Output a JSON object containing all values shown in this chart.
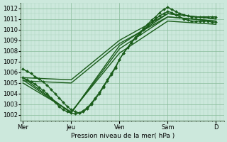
{
  "bg_color": "#cce8dc",
  "grid_major_color": "#88bb99",
  "grid_minor_color": "#aad4bb",
  "line_color": "#1a5c1a",
  "ylabel_text": "Pression niveau de la mer( hPa )",
  "yticks": [
    1002,
    1003,
    1004,
    1005,
    1006,
    1007,
    1008,
    1009,
    1010,
    1011,
    1012
  ],
  "ylim": [
    1001.5,
    1012.5
  ],
  "xtick_labels": [
    "Mer",
    "Jeu",
    "Ven",
    "Sam",
    "D"
  ],
  "xtick_positions": [
    0,
    24,
    48,
    72,
    96
  ],
  "xlim": [
    -1,
    100
  ],
  "lines": [
    {
      "x": [
        0,
        2,
        4,
        6,
        8,
        10,
        12,
        14,
        16,
        18,
        20,
        22,
        24,
        26,
        28,
        30,
        32,
        34,
        36,
        38,
        40,
        42,
        44,
        46,
        48,
        50,
        52,
        54,
        56,
        58,
        60,
        62,
        64,
        66,
        68,
        70,
        72,
        74,
        76,
        78,
        80,
        82,
        84,
        86,
        88,
        90,
        92,
        94,
        96
      ],
      "y": [
        1006.3,
        1006.1,
        1005.9,
        1005.6,
        1005.4,
        1005.1,
        1004.8,
        1004.4,
        1004.0,
        1003.6,
        1003.2,
        1002.8,
        1002.5,
        1002.3,
        1002.2,
        1002.3,
        1002.6,
        1003.0,
        1003.5,
        1004.0,
        1004.6,
        1005.2,
        1005.8,
        1006.4,
        1007.2,
        1007.8,
        1008.3,
        1008.8,
        1009.3,
        1009.7,
        1010.1,
        1010.5,
        1010.9,
        1011.2,
        1011.6,
        1011.9,
        1012.1,
        1011.9,
        1011.7,
        1011.5,
        1011.4,
        1011.3,
        1011.2,
        1011.2,
        1011.2,
        1011.2,
        1011.2,
        1011.2,
        1011.2
      ],
      "marker": "D",
      "ms": 2.0,
      "lw": 1.0
    },
    {
      "x": [
        0,
        2,
        4,
        6,
        8,
        10,
        12,
        14,
        16,
        18,
        20,
        22,
        24,
        26,
        28,
        30,
        32,
        34,
        36,
        38,
        40,
        42,
        44,
        46,
        48,
        50,
        52,
        54,
        56,
        58,
        60,
        62,
        64,
        66,
        68,
        70,
        72,
        74,
        76,
        78,
        80,
        82,
        84,
        86,
        88,
        90,
        92,
        94,
        96
      ],
      "y": [
        1005.5,
        1005.3,
        1005.1,
        1004.9,
        1004.6,
        1004.3,
        1004.0,
        1003.6,
        1003.2,
        1002.8,
        1002.5,
        1002.3,
        1002.2,
        1002.1,
        1002.2,
        1002.4,
        1002.7,
        1003.1,
        1003.6,
        1004.1,
        1004.7,
        1005.3,
        1005.9,
        1006.5,
        1007.2,
        1007.8,
        1008.3,
        1008.8,
        1009.2,
        1009.6,
        1010.0,
        1010.3,
        1010.7,
        1011.0,
        1011.3,
        1011.5,
        1011.7,
        1011.6,
        1011.4,
        1011.2,
        1011.0,
        1010.9,
        1010.8,
        1010.8,
        1010.8,
        1010.8,
        1010.8,
        1010.7,
        1010.7
      ],
      "marker": "D",
      "ms": 2.0,
      "lw": 1.0
    },
    {
      "x": [
        0,
        24,
        48,
        72,
        96
      ],
      "y": [
        1005.5,
        1002.2,
        1008.5,
        1011.5,
        1011.0
      ],
      "marker": null,
      "ms": 0,
      "lw": 1.0
    },
    {
      "x": [
        0,
        24,
        48,
        72,
        96
      ],
      "y": [
        1005.3,
        1002.2,
        1008.2,
        1011.2,
        1010.8
      ],
      "marker": null,
      "ms": 0,
      "lw": 1.0
    },
    {
      "x": [
        0,
        24,
        48,
        72,
        96
      ],
      "y": [
        1005.0,
        1002.3,
        1007.8,
        1010.8,
        1010.5
      ],
      "marker": null,
      "ms": 0,
      "lw": 1.0
    },
    {
      "x": [
        0,
        24,
        48,
        72,
        96
      ],
      "y": [
        1005.5,
        1005.3,
        1009.0,
        1011.5,
        1011.0
      ],
      "marker": null,
      "ms": 0,
      "lw": 1.0
    },
    {
      "x": [
        0,
        24,
        48,
        72,
        96
      ],
      "y": [
        1005.2,
        1005.0,
        1008.7,
        1011.2,
        1010.8
      ],
      "marker": null,
      "ms": 0,
      "lw": 1.0
    }
  ]
}
